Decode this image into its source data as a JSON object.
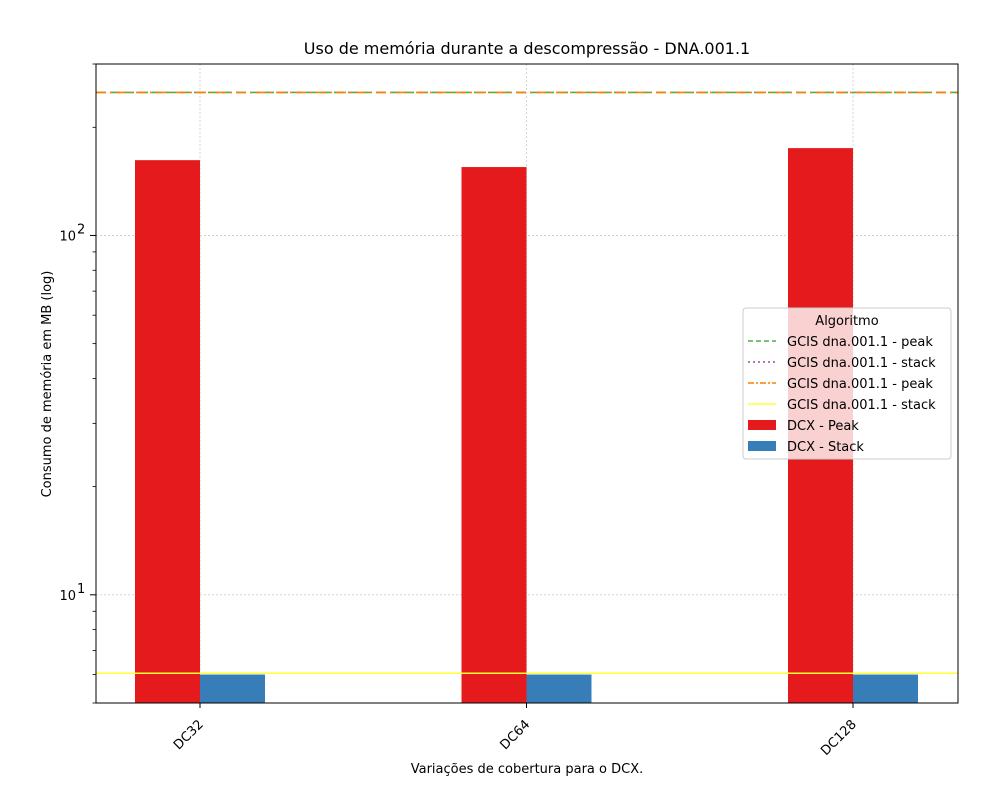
{
  "chart_data": {
    "type": "bar",
    "title": "Uso de memória durante a descompressão -  DNA.001.1",
    "xlabel": "Variações de cobertura para o DCX.",
    "ylabel": "Consumo de memória em MB (log)",
    "yscale": "log",
    "ylim": [
      5,
      300
    ],
    "grid": true,
    "categories": [
      "DC32",
      "DC64",
      "DC128"
    ],
    "series": [
      {
        "name": "DCX - Peak",
        "color": "#e41a1c",
        "values": [
          162,
          155,
          175
        ]
      },
      {
        "name": "DCX - Stack",
        "color": "#377eb8",
        "values": [
          6.0,
          6.0,
          6.0
        ]
      }
    ],
    "reference_lines": [
      {
        "name": "GCIS dna.001.1 - peak",
        "color": "#4daf4a",
        "style": "dashed",
        "value": 250
      },
      {
        "name": "GCIS dna.001.1 - stack",
        "color": "#984ea3",
        "style": "dotted",
        "value": 6.05
      },
      {
        "name": "GCIS dna.001.1 - peak",
        "color": "#ff7f00",
        "style": "dashdot",
        "value": 250
      },
      {
        "name": "GCIS dna.001.1 - stack",
        "color": "#ffff33",
        "style": "solid",
        "value": 6.05
      }
    ],
    "y_ticks": [
      {
        "value": 10,
        "base": "10",
        "exp": "1"
      },
      {
        "value": 100,
        "base": "10",
        "exp": "2"
      }
    ],
    "legend": {
      "title": "Algoritmo",
      "placement": "center-right"
    }
  }
}
